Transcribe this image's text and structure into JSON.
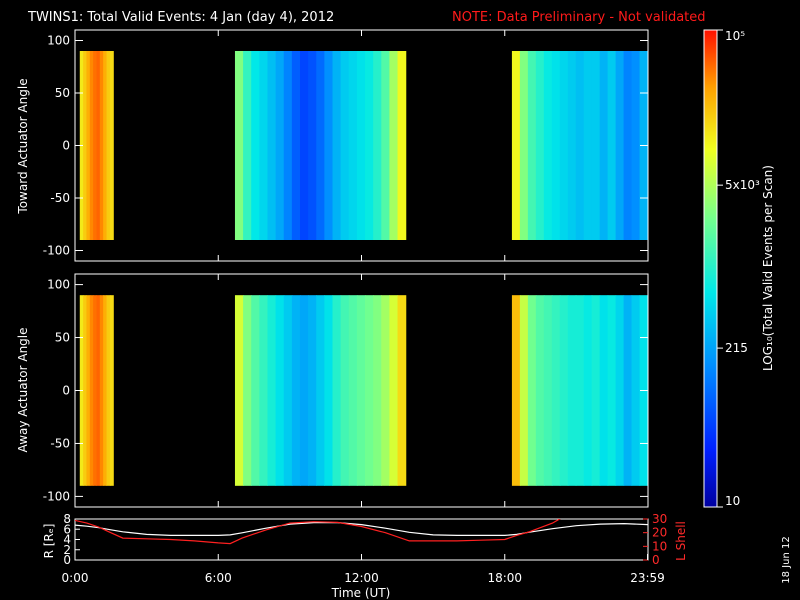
{
  "header": {
    "title": "TWINS1: Total Valid Events:  4 Jan (day   4), 2012",
    "note": "NOTE: Data Preliminary - Not validated"
  },
  "footer": {
    "date_stamp": "18 Jun 12"
  },
  "colorbar": {
    "label": "LOG₁₀(Total Valid Events per Scan)",
    "ticks": [
      "10",
      "215",
      "5x10³",
      "10⁵"
    ],
    "tick_values": [
      10,
      215,
      5000,
      100000
    ]
  },
  "chart_data": [
    {
      "type": "heatmap",
      "ylabel": "Toward Actuator Angle",
      "x_unit": "hours UT",
      "xlim": [
        0,
        24
      ],
      "ylim": [
        -110,
        110
      ],
      "yticks": [
        100,
        50,
        0,
        -50,
        -100
      ],
      "value_range": [
        -90,
        90
      ],
      "data_intervals": [
        {
          "start": 0.2,
          "end": 1.6,
          "levels": [
            0.78,
            0.82,
            0.86,
            0.9,
            0.92,
            0.93,
            0.9,
            0.86,
            0.82,
            0.8
          ]
        },
        {
          "start": 6.7,
          "end": 13.85,
          "levels": [
            0.62,
            0.52,
            0.45,
            0.42,
            0.38,
            0.34,
            0.28,
            0.22,
            0.18,
            0.2,
            0.24,
            0.3,
            0.36,
            0.4,
            0.42,
            0.44,
            0.46,
            0.5,
            0.56,
            0.66,
            0.76
          ]
        },
        {
          "start": 18.3,
          "end": 23.98,
          "levels": [
            0.76,
            0.62,
            0.54,
            0.5,
            0.46,
            0.44,
            0.42,
            0.4,
            0.38,
            0.4,
            0.4,
            0.36,
            0.4,
            0.34,
            0.28,
            0.3,
            0.36
          ]
        }
      ]
    },
    {
      "type": "heatmap",
      "ylabel": "Away Actuator Angle",
      "x_unit": "hours UT",
      "xlim": [
        0,
        24
      ],
      "ylim": [
        -110,
        110
      ],
      "yticks": [
        100,
        50,
        0,
        -50,
        -100
      ],
      "value_range": [
        -90,
        90
      ],
      "data_intervals": [
        {
          "start": 0.2,
          "end": 1.6,
          "levels": [
            0.78,
            0.82,
            0.86,
            0.9,
            0.92,
            0.93,
            0.9,
            0.86,
            0.82,
            0.8
          ]
        },
        {
          "start": 6.7,
          "end": 13.85,
          "levels": [
            0.72,
            0.62,
            0.56,
            0.52,
            0.48,
            0.44,
            0.4,
            0.36,
            0.34,
            0.36,
            0.4,
            0.44,
            0.5,
            0.54,
            0.56,
            0.58,
            0.6,
            0.62,
            0.66,
            0.72,
            0.8
          ]
        },
        {
          "start": 18.3,
          "end": 23.98,
          "levels": [
            0.84,
            0.7,
            0.6,
            0.56,
            0.54,
            0.52,
            0.5,
            0.48,
            0.48,
            0.46,
            0.48,
            0.44,
            0.46,
            0.42,
            0.36,
            0.4,
            0.44
          ]
        }
      ]
    },
    {
      "type": "line",
      "xlabel": "Time (UT)",
      "xticks": [
        "0:00",
        "6:00",
        "12:00",
        "18:00",
        "23:59"
      ],
      "xtick_values": [
        0,
        6,
        12,
        18,
        23.98
      ],
      "xlim": [
        0,
        24
      ],
      "left_axis": {
        "label": "R [Rₑ]",
        "ylim": [
          0,
          8
        ],
        "ticks": [
          "8",
          "6",
          "4",
          "2",
          "0"
        ],
        "tick_values": [
          8,
          6,
          4,
          2,
          0
        ]
      },
      "right_axis": {
        "label": "L Shell",
        "ylim": [
          0,
          30
        ],
        "ticks": [
          "30",
          "20",
          "10",
          "0"
        ],
        "tick_values": [
          30,
          20,
          10,
          0
        ]
      },
      "series": [
        {
          "name": "R [Rₑ]",
          "axis": "left",
          "color": "#ffffff",
          "x": [
            0,
            0.5,
            1,
            1.5,
            2,
            3,
            4,
            5,
            6,
            6.5,
            7,
            8,
            9,
            10,
            11,
            12,
            13,
            14,
            15,
            16,
            17,
            18,
            18.5,
            19,
            20,
            21,
            22,
            23,
            24
          ],
          "y": [
            6.8,
            6.6,
            6.3,
            5.9,
            5.5,
            5.0,
            4.8,
            4.8,
            4.8,
            4.9,
            5.3,
            6.2,
            7.0,
            7.3,
            7.3,
            6.9,
            6.2,
            5.4,
            4.9,
            4.8,
            4.8,
            4.8,
            5.0,
            5.4,
            6.1,
            6.7,
            7.0,
            7.1,
            6.9
          ]
        },
        {
          "name": "L Shell",
          "axis": "right",
          "color": "#ff2020",
          "x": [
            0,
            0.5,
            1,
            1.5,
            2,
            3,
            4,
            5,
            6,
            6.5,
            7,
            8,
            9,
            10,
            11,
            12,
            13,
            14,
            15,
            16,
            17,
            18,
            18.5,
            19,
            20,
            20.4
          ],
          "y": [
            29,
            27,
            24,
            20,
            16,
            15.5,
            15,
            14,
            12.5,
            12,
            16,
            22,
            27,
            28,
            27.5,
            24.5,
            20,
            14,
            14,
            14,
            14.5,
            15,
            18,
            20.5,
            27,
            31
          ]
        }
      ]
    }
  ]
}
